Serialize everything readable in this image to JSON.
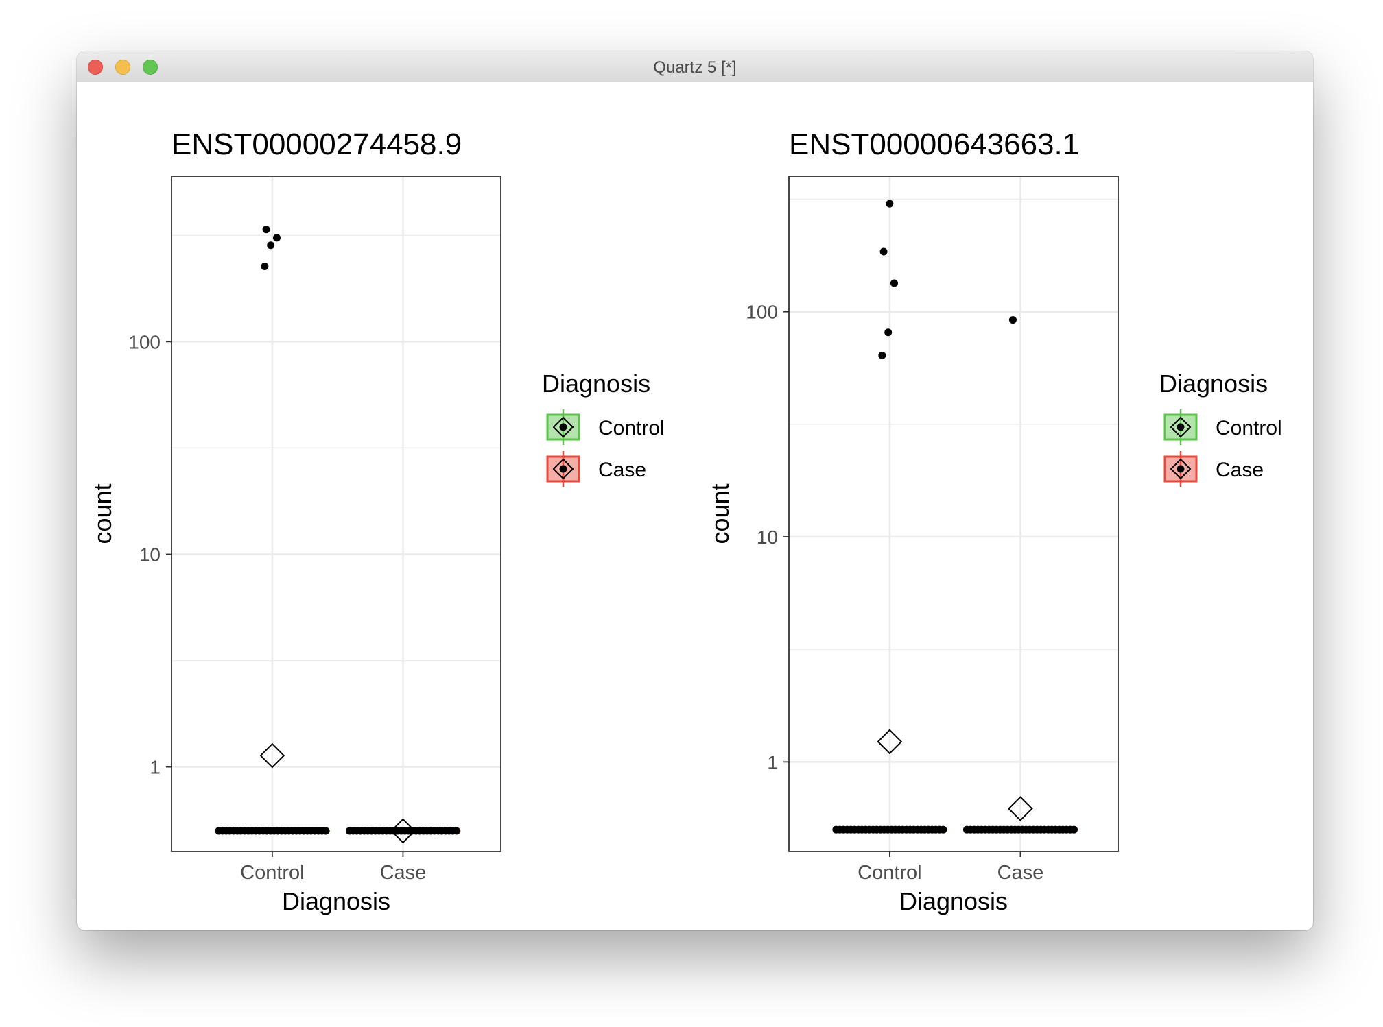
{
  "window": {
    "title": "Quartz 5 [*]"
  },
  "colors": {
    "control": "#5bc24a",
    "case": "#e8493c",
    "points": "#000000",
    "grid": "#ebebeb",
    "panel_border": "#333333"
  },
  "legend": {
    "title": "Diagnosis",
    "items": [
      {
        "label": "Control",
        "color": "#5bc24a"
      },
      {
        "label": "Case",
        "color": "#e8493c"
      }
    ]
  },
  "chart_data": [
    {
      "type": "scatter",
      "title": "ENST00000274458.9",
      "xlabel": "Diagnosis",
      "ylabel": "count",
      "categories": [
        "Control",
        "Case"
      ],
      "y_scale": "log10",
      "ylim": [
        0.4,
        600
      ],
      "y_ticks": [
        1,
        10,
        100
      ],
      "y_tick_labels": [
        "1",
        "10",
        "100"
      ],
      "grid": true,
      "legend_position": "right",
      "series": [
        {
          "category": "Control",
          "fill": "#5bc24a",
          "points": [
            226,
            284,
            308,
            337
          ],
          "zero_points": 30,
          "zero_value": 0.5,
          "mean": 1.13
        },
        {
          "category": "Case",
          "fill": "#e8493c",
          "points": [],
          "zero_points": 30,
          "zero_value": 0.5,
          "mean": 0.5
        }
      ]
    },
    {
      "type": "scatter",
      "title": "ENST00000643663.1",
      "xlabel": "Diagnosis",
      "ylabel": "count",
      "categories": [
        "Control",
        "Case"
      ],
      "y_scale": "log10",
      "ylim": [
        0.4,
        400
      ],
      "y_ticks": [
        1,
        10,
        100
      ],
      "y_tick_labels": [
        "1",
        "10",
        "100"
      ],
      "grid": true,
      "legend_position": "right",
      "series": [
        {
          "category": "Control",
          "fill": "#5bc24a",
          "points": [
            64,
            81,
            134,
            185,
            302
          ],
          "zero_points": 30,
          "zero_value": 0.5,
          "mean": 1.23
        },
        {
          "category": "Case",
          "fill": "#e8493c",
          "points": [
            92
          ],
          "zero_points": 30,
          "zero_value": 0.5,
          "mean": 0.62
        }
      ]
    }
  ]
}
